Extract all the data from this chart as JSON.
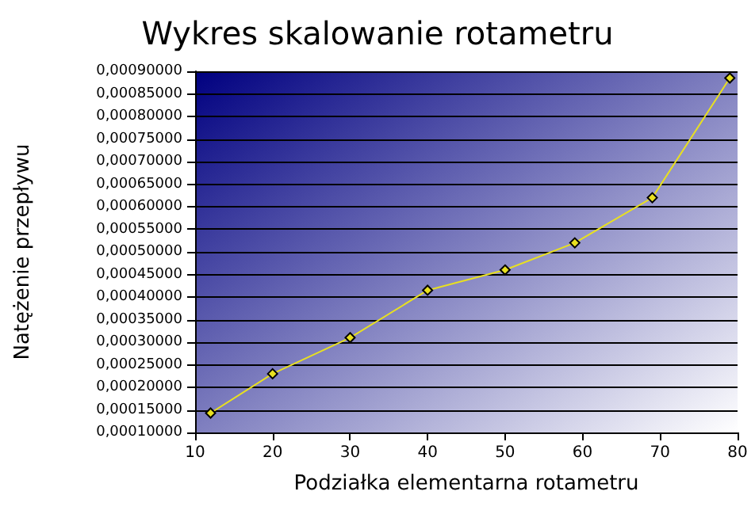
{
  "chart_data": {
    "type": "line",
    "title": "Wykres skalowanie rotametru",
    "xlabel": "Podziałka elementarna rotametru",
    "ylabel": "Natężenie przepływu",
    "x": [
      12,
      20,
      30,
      40,
      50,
      59,
      69,
      79
    ],
    "series": [
      {
        "color": "#e8e020",
        "values": [
          0.000143,
          0.00023,
          0.00031,
          0.000415,
          0.00046,
          0.00052,
          0.00062,
          0.000885
        ]
      }
    ],
    "xlim": [
      10,
      80
    ],
    "xticks": [
      10,
      20,
      30,
      40,
      50,
      60,
      70,
      80
    ],
    "ylim": [
      0.0001,
      0.0009
    ],
    "yticks": [
      {
        "value": 0.0001,
        "label": "0,00010000"
      },
      {
        "value": 0.00015,
        "label": "0,00015000"
      },
      {
        "value": 0.0002,
        "label": "0,00020000"
      },
      {
        "value": 0.00025,
        "label": "0,00025000"
      },
      {
        "value": 0.0003,
        "label": "0,00030000"
      },
      {
        "value": 0.00035,
        "label": "0,00035000"
      },
      {
        "value": 0.0004,
        "label": "0,00040000"
      },
      {
        "value": 0.00045,
        "label": "0,00045000"
      },
      {
        "value": 0.0005,
        "label": "0,00050000"
      },
      {
        "value": 0.00055,
        "label": "0,00055000"
      },
      {
        "value": 0.0006,
        "label": "0,00060000"
      },
      {
        "value": 0.00065,
        "label": "0,00065000"
      },
      {
        "value": 0.0007,
        "label": "0,00070000"
      },
      {
        "value": 0.00075,
        "label": "0,00075000"
      },
      {
        "value": 0.0008,
        "label": "0,00080000"
      },
      {
        "value": 0.00085,
        "label": "0,00085000"
      },
      {
        "value": 0.0009,
        "label": "0,00090000"
      }
    ],
    "grid": "y",
    "marker": "diamond",
    "line_style": "solid"
  }
}
